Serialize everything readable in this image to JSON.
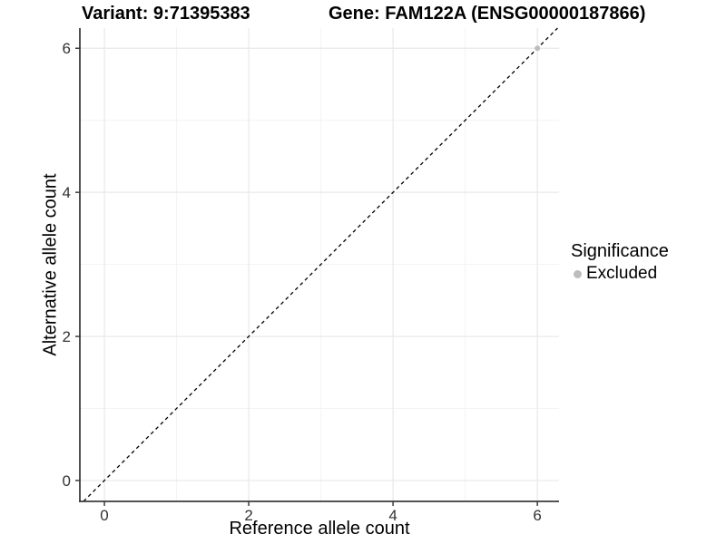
{
  "titles": {
    "left": "Variant: 9:71395383",
    "right": "Gene: FAM122A (ENSG00000187866)"
  },
  "chart_data": {
    "type": "scatter",
    "xlabel": "Reference allele count",
    "ylabel": "Alternative allele count",
    "xlim": [
      -0.34,
      6.3
    ],
    "ylim": [
      -0.29,
      6.28
    ],
    "x_ticks_major": [
      0,
      2,
      4,
      6
    ],
    "y_ticks_major": [
      0,
      2,
      4,
      6
    ],
    "x_ticks_minor": [
      1,
      3,
      5
    ],
    "y_ticks_minor": [
      1,
      3,
      5
    ],
    "grid": true,
    "reference_line": {
      "type": "identity",
      "slope": 1,
      "intercept": 0,
      "style": "dashed",
      "color": "#000000"
    },
    "points": [
      {
        "x": 6,
        "y": 6,
        "series": "Excluded"
      }
    ],
    "legend": {
      "title": "Significance",
      "position": "right",
      "items": [
        {
          "label": "Excluded",
          "color": "#bdbdbd"
        }
      ]
    }
  },
  "colors": {
    "background": "#ffffff",
    "grid_major": "#e8e8e8",
    "grid_minor": "#f3f3f3",
    "axis_line": "#3c3c3c",
    "tick_label": "#333333",
    "point_excluded": "#bdbdbd",
    "dashed_line": "#000000"
  }
}
